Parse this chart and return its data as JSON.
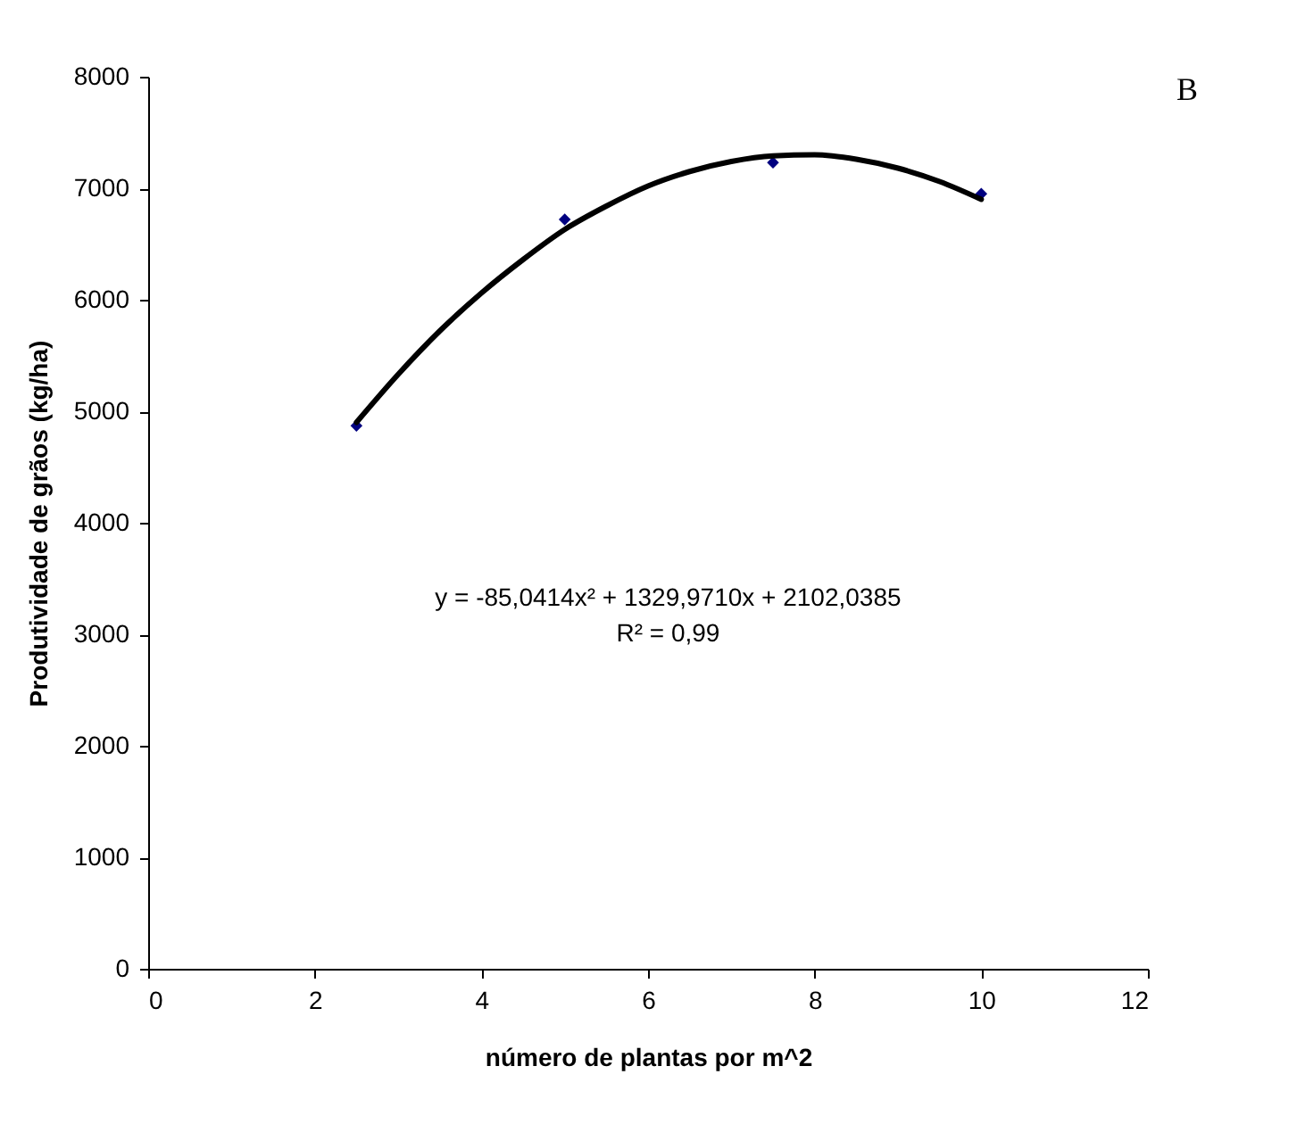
{
  "chart_data": {
    "type": "scatter",
    "xlabel": "número de plantas por m^2",
    "ylabel": "Produtividade de grãos (kg/ha)",
    "x": [
      2.5,
      5,
      7.5,
      10
    ],
    "series": [
      {
        "color": "#000080",
        "values": [
          4870,
          6720,
          7230,
          6950
        ]
      },
      {
        "type": "line",
        "color": "#000000",
        "marker": "none",
        "x": [
          2.5,
          3,
          3.5,
          4,
          4.5,
          5,
          5.5,
          6,
          6.5,
          7,
          7.5,
          8,
          8.5,
          9,
          9.5,
          10
        ],
        "values": [
          4900,
          5330,
          5720,
          6060,
          6360,
          6630,
          6840,
          7020,
          7150,
          7240,
          7290,
          7300,
          7260,
          7180,
          7060,
          6900
        ]
      }
    ],
    "xlim": [
      0,
      12
    ],
    "xticks": [
      0,
      2,
      4,
      6,
      8,
      10,
      12
    ],
    "ylim": [
      0,
      8000
    ],
    "yticks": [
      0,
      1000,
      2000,
      3000,
      4000,
      5000,
      6000,
      7000,
      8000
    ],
    "grid": false,
    "marker": "diamond",
    "line_style": "solid",
    "annotations": [
      "B",
      "y = -85,0414x² + 1329,9710x + 2102,0385",
      "R² = 0,99"
    ]
  }
}
